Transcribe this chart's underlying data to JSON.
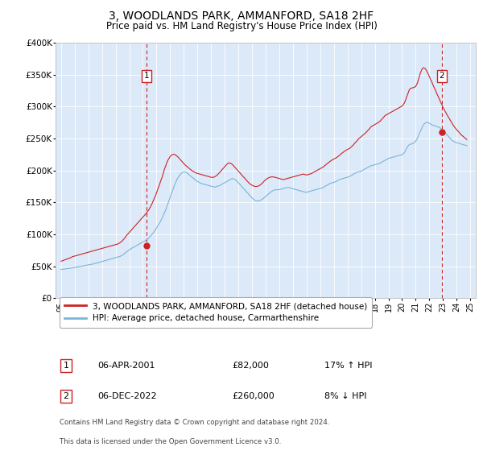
{
  "title": "3, WOODLANDS PARK, AMMANFORD, SA18 2HF",
  "subtitle": "Price paid vs. HM Land Registry's House Price Index (HPI)",
  "title_fontsize": 10,
  "subtitle_fontsize": 8.5,
  "ylim": [
    0,
    400000
  ],
  "yticks": [
    0,
    50000,
    100000,
    150000,
    200000,
    250000,
    300000,
    350000,
    400000
  ],
  "ytick_labels": [
    "£0",
    "£50K",
    "£100K",
    "£150K",
    "£200K",
    "£250K",
    "£300K",
    "£350K",
    "£400K"
  ],
  "plot_bg_color": "#dce9f8",
  "hpi_line_color": "#7ab4d8",
  "price_line_color": "#cc2222",
  "marker1_x": 2001.25,
  "marker2_x": 2022.92,
  "marker1_price": 82000,
  "marker2_price": 260000,
  "sale1_label": "1",
  "sale2_label": "2",
  "legend_line1": "3, WOODLANDS PARK, AMMANFORD, SA18 2HF (detached house)",
  "legend_line2": "HPI: Average price, detached house, Carmarthenshire",
  "table_row1": [
    "1",
    "06-APR-2001",
    "£82,000",
    "17% ↑ HPI"
  ],
  "table_row2": [
    "2",
    "06-DEC-2022",
    "£260,000",
    "8% ↓ HPI"
  ],
  "footnote1": "Contains HM Land Registry data © Crown copyright and database right 2024.",
  "footnote2": "This data is licensed under the Open Government Licence v3.0.",
  "xlim_left": 1994.6,
  "xlim_right": 2025.4,
  "hpi_data_x": [
    1995.0,
    1995.08,
    1995.17,
    1995.25,
    1995.33,
    1995.42,
    1995.5,
    1995.58,
    1995.67,
    1995.75,
    1995.83,
    1995.92,
    1996.0,
    1996.08,
    1996.17,
    1996.25,
    1996.33,
    1996.42,
    1996.5,
    1996.58,
    1996.67,
    1996.75,
    1996.83,
    1996.92,
    1997.0,
    1997.08,
    1997.17,
    1997.25,
    1997.33,
    1997.42,
    1997.5,
    1997.58,
    1997.67,
    1997.75,
    1997.83,
    1997.92,
    1998.0,
    1998.08,
    1998.17,
    1998.25,
    1998.33,
    1998.42,
    1998.5,
    1998.58,
    1998.67,
    1998.75,
    1998.83,
    1998.92,
    1999.0,
    1999.08,
    1999.17,
    1999.25,
    1999.33,
    1999.42,
    1999.5,
    1999.58,
    1999.67,
    1999.75,
    1999.83,
    1999.92,
    2000.0,
    2000.08,
    2000.17,
    2000.25,
    2000.33,
    2000.42,
    2000.5,
    2000.58,
    2000.67,
    2000.75,
    2000.83,
    2000.92,
    2001.0,
    2001.08,
    2001.17,
    2001.25,
    2001.33,
    2001.42,
    2001.5,
    2001.58,
    2001.67,
    2001.75,
    2001.83,
    2001.92,
    2002.0,
    2002.08,
    2002.17,
    2002.25,
    2002.33,
    2002.42,
    2002.5,
    2002.58,
    2002.67,
    2002.75,
    2002.83,
    2002.92,
    2003.0,
    2003.08,
    2003.17,
    2003.25,
    2003.33,
    2003.42,
    2003.5,
    2003.58,
    2003.67,
    2003.75,
    2003.83,
    2003.92,
    2004.0,
    2004.08,
    2004.17,
    2004.25,
    2004.33,
    2004.42,
    2004.5,
    2004.58,
    2004.67,
    2004.75,
    2004.83,
    2004.92,
    2005.0,
    2005.08,
    2005.17,
    2005.25,
    2005.33,
    2005.42,
    2005.5,
    2005.58,
    2005.67,
    2005.75,
    2005.83,
    2005.92,
    2006.0,
    2006.08,
    2006.17,
    2006.25,
    2006.33,
    2006.42,
    2006.5,
    2006.58,
    2006.67,
    2006.75,
    2006.83,
    2006.92,
    2007.0,
    2007.08,
    2007.17,
    2007.25,
    2007.33,
    2007.42,
    2007.5,
    2007.58,
    2007.67,
    2007.75,
    2007.83,
    2007.92,
    2008.0,
    2008.08,
    2008.17,
    2008.25,
    2008.33,
    2008.42,
    2008.5,
    2008.58,
    2008.67,
    2008.75,
    2008.83,
    2008.92,
    2009.0,
    2009.08,
    2009.17,
    2009.25,
    2009.33,
    2009.42,
    2009.5,
    2009.58,
    2009.67,
    2009.75,
    2009.83,
    2009.92,
    2010.0,
    2010.08,
    2010.17,
    2010.25,
    2010.33,
    2010.42,
    2010.5,
    2010.58,
    2010.67,
    2010.75,
    2010.83,
    2010.92,
    2011.0,
    2011.08,
    2011.17,
    2011.25,
    2011.33,
    2011.42,
    2011.5,
    2011.58,
    2011.67,
    2011.75,
    2011.83,
    2011.92,
    2012.0,
    2012.08,
    2012.17,
    2012.25,
    2012.33,
    2012.42,
    2012.5,
    2012.58,
    2012.67,
    2012.75,
    2012.83,
    2012.92,
    2013.0,
    2013.08,
    2013.17,
    2013.25,
    2013.33,
    2013.42,
    2013.5,
    2013.58,
    2013.67,
    2013.75,
    2013.83,
    2013.92,
    2014.0,
    2014.08,
    2014.17,
    2014.25,
    2014.33,
    2014.42,
    2014.5,
    2014.58,
    2014.67,
    2014.75,
    2014.83,
    2014.92,
    2015.0,
    2015.08,
    2015.17,
    2015.25,
    2015.33,
    2015.42,
    2015.5,
    2015.58,
    2015.67,
    2015.75,
    2015.83,
    2015.92,
    2016.0,
    2016.08,
    2016.17,
    2016.25,
    2016.33,
    2016.42,
    2016.5,
    2016.58,
    2016.67,
    2016.75,
    2016.83,
    2016.92,
    2017.0,
    2017.08,
    2017.17,
    2017.25,
    2017.33,
    2017.42,
    2017.5,
    2017.58,
    2017.67,
    2017.75,
    2017.83,
    2017.92,
    2018.0,
    2018.08,
    2018.17,
    2018.25,
    2018.33,
    2018.42,
    2018.5,
    2018.58,
    2018.67,
    2018.75,
    2018.83,
    2018.92,
    2019.0,
    2019.08,
    2019.17,
    2019.25,
    2019.33,
    2019.42,
    2019.5,
    2019.58,
    2019.67,
    2019.75,
    2019.83,
    2019.92,
    2020.0,
    2020.08,
    2020.17,
    2020.25,
    2020.33,
    2020.42,
    2020.5,
    2020.58,
    2020.67,
    2020.75,
    2020.83,
    2020.92,
    2021.0,
    2021.08,
    2021.17,
    2021.25,
    2021.33,
    2021.42,
    2021.5,
    2021.58,
    2021.67,
    2021.75,
    2021.83,
    2021.92,
    2022.0,
    2022.08,
    2022.17,
    2022.25,
    2022.33,
    2022.42,
    2022.5,
    2022.58,
    2022.67,
    2022.75,
    2022.83,
    2022.92,
    2023.0,
    2023.08,
    2023.17,
    2023.25,
    2023.33,
    2023.42,
    2023.5,
    2023.58,
    2023.67,
    2023.75,
    2023.83,
    2023.92,
    2024.0,
    2024.08,
    2024.17,
    2024.25,
    2024.33,
    2024.42,
    2024.5,
    2024.58,
    2024.67,
    2024.75
  ],
  "hpi_data_y": [
    45000,
    45200,
    45500,
    45800,
    46000,
    46200,
    46500,
    46700,
    47000,
    47200,
    47500,
    47700,
    48000,
    48300,
    48600,
    49000,
    49400,
    49700,
    50000,
    50400,
    50800,
    51200,
    51500,
    51800,
    52000,
    52300,
    52700,
    53100,
    53500,
    54000,
    54500,
    55000,
    55500,
    56000,
    56500,
    57000,
    57500,
    58000,
    58500,
    59000,
    59500,
    60000,
    60500,
    61000,
    61500,
    62000,
    62500,
    63000,
    63500,
    64000,
    64500,
    65000,
    65500,
    66500,
    67500,
    68500,
    70000,
    71500,
    73000,
    74500,
    76000,
    77000,
    78000,
    79000,
    80000,
    81000,
    82000,
    83000,
    84000,
    85000,
    86000,
    87000,
    88000,
    89000,
    90000,
    91000,
    92500,
    94000,
    96000,
    98000,
    100000,
    102000,
    104500,
    107000,
    110000,
    113000,
    116000,
    119000,
    122000,
    126000,
    130000,
    134000,
    138000,
    143000,
    148000,
    153000,
    158000,
    163000,
    168000,
    173000,
    178000,
    182000,
    186000,
    189000,
    192000,
    194000,
    196000,
    197000,
    198000,
    197500,
    197000,
    196000,
    194500,
    193000,
    191500,
    190000,
    188500,
    187000,
    185500,
    184000,
    183000,
    182000,
    181000,
    180000,
    179500,
    179000,
    178500,
    178000,
    177500,
    177000,
    176500,
    176000,
    175500,
    175000,
    174500,
    174000,
    174500,
    175000,
    175500,
    176000,
    177000,
    178000,
    179000,
    180000,
    181000,
    182000,
    183000,
    184000,
    185000,
    186000,
    187000,
    187500,
    187000,
    186000,
    184500,
    183000,
    181000,
    179000,
    177000,
    175000,
    173000,
    171000,
    169000,
    167000,
    165000,
    163000,
    161000,
    159000,
    157000,
    155500,
    154000,
    153000,
    152500,
    152000,
    152500,
    153000,
    154000,
    155000,
    156500,
    158000,
    159500,
    161000,
    162500,
    164000,
    165500,
    167000,
    168000,
    169000,
    169500,
    170000,
    170000,
    170000,
    170000,
    170500,
    171000,
    171500,
    172000,
    172500,
    173000,
    173500,
    173500,
    173000,
    172500,
    172000,
    171500,
    171000,
    170500,
    170000,
    169500,
    169000,
    168500,
    168000,
    167500,
    167000,
    166500,
    166000,
    166000,
    166500,
    167000,
    167500,
    168000,
    168500,
    169000,
    169500,
    170000,
    170500,
    171000,
    171500,
    172000,
    172500,
    173000,
    174000,
    175000,
    176000,
    177000,
    178000,
    179000,
    180000,
    180500,
    181000,
    181500,
    182000,
    183000,
    184000,
    185000,
    186000,
    186500,
    187000,
    187500,
    188000,
    188500,
    189000,
    189500,
    190000,
    191000,
    192000,
    193000,
    194000,
    195000,
    196000,
    197000,
    197500,
    198000,
    198500,
    199000,
    200000,
    201000,
    202000,
    203000,
    204000,
    205000,
    206000,
    207000,
    207500,
    208000,
    208500,
    209000,
    209500,
    210000,
    210500,
    211000,
    212000,
    213000,
    214000,
    215000,
    216000,
    217000,
    218000,
    219000,
    219500,
    220000,
    220500,
    221000,
    221500,
    222000,
    222500,
    223000,
    223500,
    224000,
    224500,
    225000,
    226000,
    228000,
    231000,
    235000,
    238000,
    240000,
    241000,
    241500,
    242000,
    243000,
    244000,
    246000,
    249000,
    253000,
    257000,
    261000,
    265000,
    269000,
    272000,
    274000,
    275000,
    275500,
    275000,
    274000,
    273000,
    272000,
    271000,
    270500,
    270000,
    269500,
    269000,
    268000,
    267000,
    266000,
    265000,
    263000,
    261000,
    259000,
    257000,
    255000,
    253000,
    251000,
    249000,
    247000,
    246000,
    245000,
    244000,
    243500,
    243000,
    242500,
    242000,
    241500,
    241000,
    240500,
    240000,
    239500,
    239000
  ],
  "price_data_x": [
    1995.0,
    1995.08,
    1995.17,
    1995.25,
    1995.33,
    1995.42,
    1995.5,
    1995.58,
    1995.67,
    1995.75,
    1995.83,
    1995.92,
    1996.0,
    1996.08,
    1996.17,
    1996.25,
    1996.33,
    1996.42,
    1996.5,
    1996.58,
    1996.67,
    1996.75,
    1996.83,
    1996.92,
    1997.0,
    1997.08,
    1997.17,
    1997.25,
    1997.33,
    1997.42,
    1997.5,
    1997.58,
    1997.67,
    1997.75,
    1997.83,
    1997.92,
    1998.0,
    1998.08,
    1998.17,
    1998.25,
    1998.33,
    1998.42,
    1998.5,
    1998.58,
    1998.67,
    1998.75,
    1998.83,
    1998.92,
    1999.0,
    1999.08,
    1999.17,
    1999.25,
    1999.33,
    1999.42,
    1999.5,
    1999.58,
    1999.67,
    1999.75,
    1999.83,
    1999.92,
    2000.0,
    2000.08,
    2000.17,
    2000.25,
    2000.33,
    2000.42,
    2000.5,
    2000.58,
    2000.67,
    2000.75,
    2000.83,
    2000.92,
    2001.0,
    2001.08,
    2001.17,
    2001.25,
    2001.33,
    2001.42,
    2001.5,
    2001.58,
    2001.67,
    2001.75,
    2001.83,
    2001.92,
    2002.0,
    2002.08,
    2002.17,
    2002.25,
    2002.33,
    2002.42,
    2002.5,
    2002.58,
    2002.67,
    2002.75,
    2002.83,
    2002.92,
    2003.0,
    2003.08,
    2003.17,
    2003.25,
    2003.33,
    2003.42,
    2003.5,
    2003.58,
    2003.67,
    2003.75,
    2003.83,
    2003.92,
    2004.0,
    2004.08,
    2004.17,
    2004.25,
    2004.33,
    2004.42,
    2004.5,
    2004.58,
    2004.67,
    2004.75,
    2004.83,
    2004.92,
    2005.0,
    2005.08,
    2005.17,
    2005.25,
    2005.33,
    2005.42,
    2005.5,
    2005.58,
    2005.67,
    2005.75,
    2005.83,
    2005.92,
    2006.0,
    2006.08,
    2006.17,
    2006.25,
    2006.33,
    2006.42,
    2006.5,
    2006.58,
    2006.67,
    2006.75,
    2006.83,
    2006.92,
    2007.0,
    2007.08,
    2007.17,
    2007.25,
    2007.33,
    2007.42,
    2007.5,
    2007.58,
    2007.67,
    2007.75,
    2007.83,
    2007.92,
    2008.0,
    2008.08,
    2008.17,
    2008.25,
    2008.33,
    2008.42,
    2008.5,
    2008.58,
    2008.67,
    2008.75,
    2008.83,
    2008.92,
    2009.0,
    2009.08,
    2009.17,
    2009.25,
    2009.33,
    2009.42,
    2009.5,
    2009.58,
    2009.67,
    2009.75,
    2009.83,
    2009.92,
    2010.0,
    2010.08,
    2010.17,
    2010.25,
    2010.33,
    2010.42,
    2010.5,
    2010.58,
    2010.67,
    2010.75,
    2010.83,
    2010.92,
    2011.0,
    2011.08,
    2011.17,
    2011.25,
    2011.33,
    2011.42,
    2011.5,
    2011.58,
    2011.67,
    2011.75,
    2011.83,
    2011.92,
    2012.0,
    2012.08,
    2012.17,
    2012.25,
    2012.33,
    2012.42,
    2012.5,
    2012.58,
    2012.67,
    2012.75,
    2012.83,
    2012.92,
    2013.0,
    2013.08,
    2013.17,
    2013.25,
    2013.33,
    2013.42,
    2013.5,
    2013.58,
    2013.67,
    2013.75,
    2013.83,
    2013.92,
    2014.0,
    2014.08,
    2014.17,
    2014.25,
    2014.33,
    2014.42,
    2014.5,
    2014.58,
    2014.67,
    2014.75,
    2014.83,
    2014.92,
    2015.0,
    2015.08,
    2015.17,
    2015.25,
    2015.33,
    2015.42,
    2015.5,
    2015.58,
    2015.67,
    2015.75,
    2015.83,
    2015.92,
    2016.0,
    2016.08,
    2016.17,
    2016.25,
    2016.33,
    2016.42,
    2016.5,
    2016.58,
    2016.67,
    2016.75,
    2016.83,
    2016.92,
    2017.0,
    2017.08,
    2017.17,
    2017.25,
    2017.33,
    2017.42,
    2017.5,
    2017.58,
    2017.67,
    2017.75,
    2017.83,
    2017.92,
    2018.0,
    2018.08,
    2018.17,
    2018.25,
    2018.33,
    2018.42,
    2018.5,
    2018.58,
    2018.67,
    2018.75,
    2018.83,
    2018.92,
    2019.0,
    2019.08,
    2019.17,
    2019.25,
    2019.33,
    2019.42,
    2019.5,
    2019.58,
    2019.67,
    2019.75,
    2019.83,
    2019.92,
    2020.0,
    2020.08,
    2020.17,
    2020.25,
    2020.33,
    2020.42,
    2020.5,
    2020.58,
    2020.67,
    2020.75,
    2020.83,
    2020.92,
    2021.0,
    2021.08,
    2021.17,
    2021.25,
    2021.33,
    2021.42,
    2021.5,
    2021.58,
    2021.67,
    2021.75,
    2021.83,
    2021.92,
    2022.0,
    2022.08,
    2022.17,
    2022.25,
    2022.33,
    2022.42,
    2022.5,
    2022.58,
    2022.67,
    2022.75,
    2022.83,
    2022.92,
    2023.0,
    2023.08,
    2023.17,
    2023.25,
    2023.33,
    2023.42,
    2023.5,
    2023.58,
    2023.67,
    2023.75,
    2023.83,
    2023.92,
    2024.0,
    2024.08,
    2024.17,
    2024.25,
    2024.33,
    2024.42,
    2024.5,
    2024.58,
    2024.67,
    2024.75
  ],
  "price_data_y": [
    58000,
    58500,
    59000,
    60000,
    60500,
    61000,
    62000,
    62500,
    63000,
    64000,
    65000,
    65500,
    66000,
    66500,
    67000,
    67500,
    68000,
    68500,
    69000,
    69500,
    70000,
    70500,
    71000,
    71500,
    72000,
    72500,
    73000,
    73500,
    74000,
    74500,
    75000,
    75500,
    76000,
    76500,
    77000,
    77500,
    78000,
    78500,
    79000,
    79500,
    80000,
    80500,
    81000,
    81500,
    82000,
    82500,
    83000,
    83500,
    84000,
    84500,
    85000,
    86000,
    87000,
    88500,
    90000,
    92000,
    94000,
    96500,
    99000,
    101000,
    103000,
    105000,
    107000,
    109000,
    111000,
    113000,
    115000,
    117000,
    119000,
    121000,
    123000,
    125000,
    127000,
    129000,
    131000,
    133000,
    135500,
    138000,
    141000,
    144000,
    148000,
    152000,
    156000,
    160000,
    165000,
    170000,
    175000,
    180000,
    185000,
    190000,
    196000,
    202000,
    207000,
    212000,
    216000,
    219000,
    222000,
    224000,
    225000,
    225500,
    225000,
    224000,
    222500,
    221000,
    219000,
    217000,
    215000,
    213000,
    211000,
    209000,
    207500,
    206000,
    204500,
    203000,
    201500,
    200000,
    199000,
    198000,
    197000,
    196000,
    195500,
    195000,
    194500,
    194000,
    193500,
    193000,
    192500,
    192000,
    191500,
    191000,
    190500,
    190000,
    189500,
    189000,
    189500,
    190000,
    191000,
    192500,
    194000,
    196000,
    198000,
    200000,
    202000,
    204000,
    206000,
    208000,
    210000,
    211500,
    212000,
    211500,
    210500,
    209000,
    207000,
    205000,
    203000,
    201000,
    199000,
    197000,
    195000,
    193000,
    191000,
    189000,
    187000,
    185000,
    183000,
    181000,
    179500,
    178000,
    177000,
    176000,
    175500,
    175000,
    175000,
    175500,
    176000,
    177000,
    178500,
    180000,
    182000,
    184000,
    185500,
    187000,
    188000,
    189000,
    189500,
    190000,
    190000,
    190000,
    189500,
    189000,
    188500,
    188000,
    187500,
    187000,
    186500,
    186000,
    186000,
    186500,
    187000,
    187500,
    188000,
    188500,
    189000,
    189500,
    190000,
    190500,
    191000,
    191500,
    192000,
    192500,
    193000,
    193500,
    194000,
    194500,
    194000,
    193500,
    193000,
    193500,
    194000,
    194500,
    195000,
    196000,
    197000,
    198000,
    199000,
    200000,
    201000,
    202000,
    203000,
    204000,
    205000,
    206000,
    207500,
    209000,
    210500,
    212000,
    213500,
    215000,
    216000,
    217000,
    218000,
    219000,
    220000,
    221000,
    222500,
    224000,
    225500,
    227000,
    228500,
    230000,
    231000,
    232000,
    233000,
    234000,
    235000,
    236500,
    238000,
    240000,
    242000,
    244000,
    246000,
    248000,
    250000,
    251500,
    253000,
    254500,
    256000,
    257500,
    259000,
    261000,
    263000,
    265000,
    267000,
    269000,
    270000,
    271000,
    272000,
    273000,
    274000,
    275000,
    276500,
    278000,
    280000,
    282000,
    284000,
    286000,
    287000,
    288000,
    289000,
    290000,
    291000,
    292000,
    293000,
    294000,
    295000,
    296000,
    297000,
    298000,
    299000,
    300000,
    301000,
    303000,
    306000,
    310000,
    315000,
    320000,
    325000,
    328000,
    329000,
    329500,
    330000,
    330500,
    332000,
    335000,
    340000,
    346000,
    352000,
    357000,
    360000,
    361000,
    360000,
    358000,
    355000,
    351000,
    347000,
    343000,
    339000,
    335000,
    331000,
    327000,
    323000,
    319000,
    315000,
    311000,
    307000,
    303000,
    299000,
    295500,
    292000,
    289000,
    286000,
    283000,
    280000,
    277000,
    274000,
    271000,
    268500,
    266000,
    264000,
    262000,
    260000,
    258000,
    256000,
    254500,
    253000,
    251500,
    250000,
    248500
  ]
}
